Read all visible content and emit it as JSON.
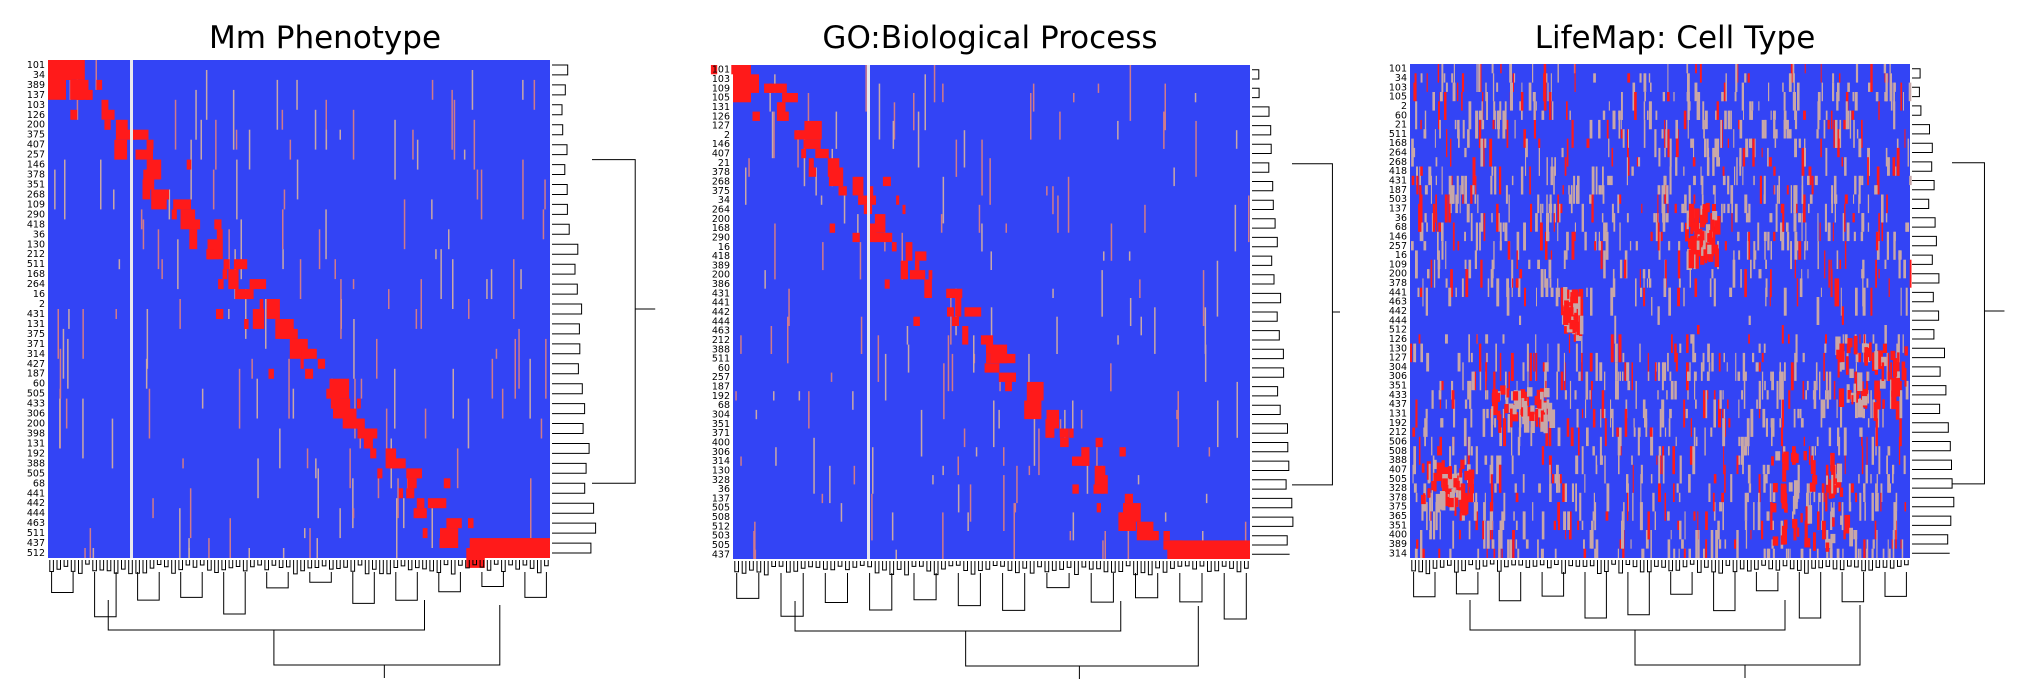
{
  "figure": {
    "colors": {
      "low": "#3344f5",
      "high": "#ff1a1a",
      "mid": "#c9a7a7",
      "divider": "#e8e8ee",
      "background": "#ffffff"
    }
  },
  "chart_data": [
    {
      "type": "heatmap",
      "title": "Mm Phenotype",
      "legend": "none",
      "dendrogram": [
        "right",
        "bottom"
      ],
      "row_labels": [
        "101",
        "34",
        "389",
        "137",
        "103",
        "126",
        "200",
        "375",
        "407",
        "257",
        "146",
        "378",
        "351",
        "268",
        "109",
        "290",
        "418",
        "36",
        "130",
        "212",
        "511",
        "168",
        "264",
        "16",
        "2",
        "431",
        "131",
        "375",
        "371",
        "314",
        "427",
        "187",
        "60",
        "505",
        "433",
        "306",
        "200",
        "398",
        "131",
        "192",
        "388",
        "505",
        "68",
        "441",
        "442",
        "444",
        "463",
        "511",
        "437",
        "512"
      ]
    },
    {
      "type": "heatmap",
      "title": "GO:Biological Process",
      "legend": "none",
      "dendrogram": [
        "right",
        "bottom"
      ],
      "row_labels": [
        "101",
        "103",
        "109",
        "105",
        "131",
        "126",
        "127",
        "2",
        "146",
        "407",
        "21",
        "378",
        "268",
        "375",
        "34",
        "264",
        "200",
        "168",
        "290",
        "16",
        "418",
        "389",
        "200",
        "386",
        "431",
        "441",
        "442",
        "444",
        "463",
        "212",
        "388",
        "511",
        "60",
        "257",
        "187",
        "192",
        "68",
        "304",
        "351",
        "371",
        "400",
        "306",
        "314",
        "130",
        "328",
        "36",
        "137",
        "505",
        "508",
        "512",
        "503",
        "505",
        "437"
      ]
    },
    {
      "type": "heatmap",
      "title": "LifeMap: Cell Type",
      "legend": "none",
      "dendrogram": [
        "right",
        "bottom"
      ],
      "row_labels": [
        "101",
        "34",
        "103",
        "105",
        "2",
        "60",
        "21",
        "511",
        "168",
        "264",
        "268",
        "418",
        "431",
        "187",
        "503",
        "137",
        "36",
        "68",
        "146",
        "257",
        "16",
        "109",
        "200",
        "378",
        "441",
        "463",
        "442",
        "444",
        "512",
        "126",
        "130",
        "127",
        "304",
        "306",
        "351",
        "433",
        "437",
        "131",
        "192",
        "212",
        "506",
        "508",
        "388",
        "407",
        "505",
        "328",
        "378",
        "375",
        "365",
        "351",
        "400",
        "389",
        "314"
      ]
    }
  ]
}
